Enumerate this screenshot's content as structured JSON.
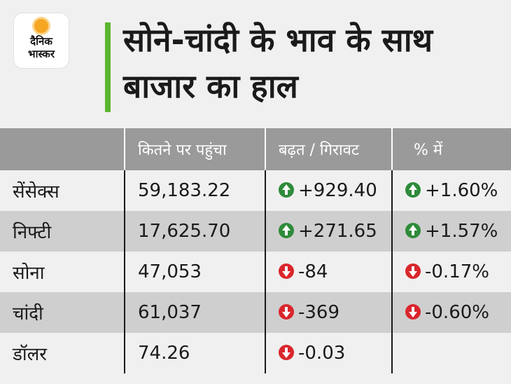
{
  "logo": {
    "line1": "दैनिक",
    "line2": "भास्कर"
  },
  "title": "सोने-चांदी के भाव के साथ बाजार का हाल",
  "table": {
    "headers": [
      "",
      "कितने पर पहुंचा",
      "बढ़त / गिरावट",
      "% में"
    ],
    "rows": [
      {
        "name": "सेंसेक्स",
        "value": "59,183.22",
        "change": "+929.40",
        "change_dir": "up",
        "pct": "+1.60%",
        "pct_dir": "up"
      },
      {
        "name": "निफ्टी",
        "value": "17,625.70",
        "change": "+271.65",
        "change_dir": "up",
        "pct": "+1.57%",
        "pct_dir": "up"
      },
      {
        "name": "सोना",
        "value": "47,053",
        "change": "-84",
        "change_dir": "down",
        "pct": "-0.17%",
        "pct_dir": "down"
      },
      {
        "name": "चांदी",
        "value": "61,037",
        "change": "-369",
        "change_dir": "down",
        "pct": "-0.60%",
        "pct_dir": "down"
      },
      {
        "name": "डॉलर",
        "value": "74.26",
        "change": "-0.03",
        "change_dir": "down",
        "pct": "",
        "pct_dir": ""
      }
    ]
  },
  "colors": {
    "accent": "#5cb531",
    "header_bg": "#9a9a9a",
    "up": "#2e8b3a",
    "down": "#d9262c",
    "alt_row": "#cfcfcf"
  }
}
